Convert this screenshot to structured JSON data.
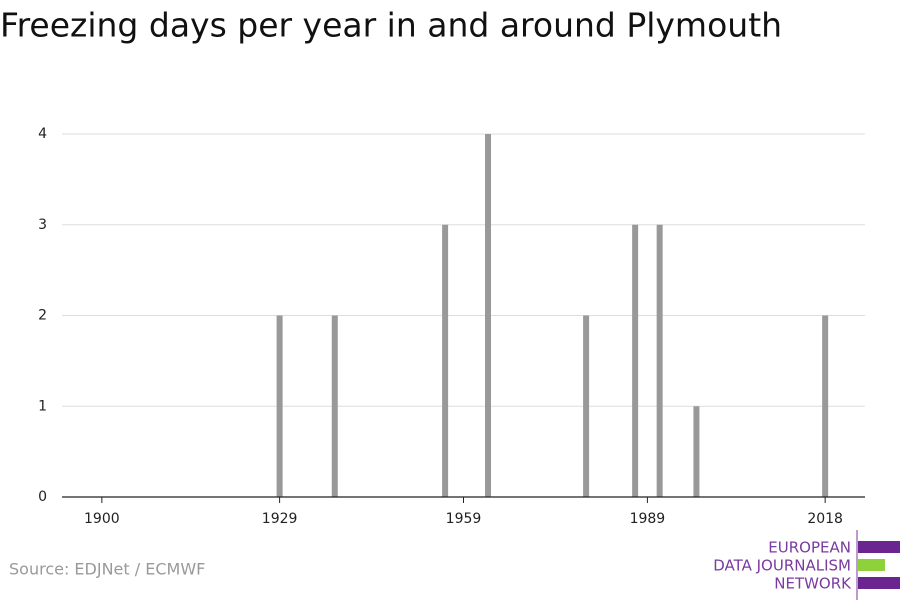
{
  "chart_data": {
    "type": "bar",
    "title": "Freezing days per year in and around Plymouth",
    "x": [
      1929,
      1938,
      1956,
      1963,
      1979,
      1987,
      1991,
      1997,
      2018
    ],
    "values": [
      2,
      2,
      3,
      4,
      2,
      3,
      3,
      1,
      2
    ],
    "color": "#999999",
    "xlim": [
      1893.5,
      2024.5
    ],
    "xticks": [
      1900,
      1929,
      1959,
      1989,
      2018
    ],
    "ylim": [
      0,
      4
    ],
    "yticks": [
      0,
      1,
      2,
      3,
      4
    ],
    "grid": true,
    "source": "Source: EDJNet / ECMWF",
    "branding": [
      "EUROPEAN",
      "DATA JOURNALISM",
      "NETWORK"
    ]
  }
}
